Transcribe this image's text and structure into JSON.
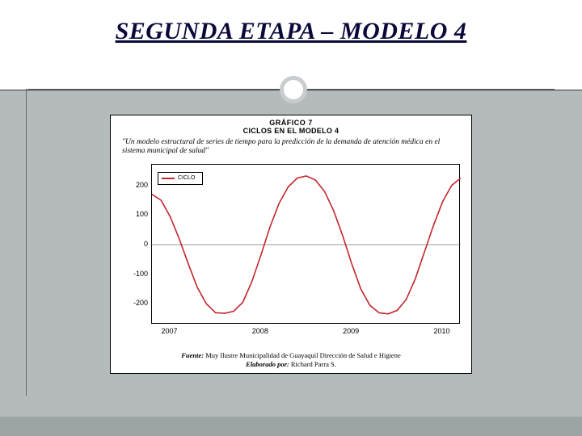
{
  "slide": {
    "title": "SEGUNDA ETAPA – MODELO 4"
  },
  "chart": {
    "type": "line",
    "supertitle": "GRÁFICO 7",
    "title": "CICLOS EN EL MODELO 4",
    "subtitle": "\"Un modelo estructural de series de tiempo para la predicción de la demanda de atención médica en el sistema municipal de salud\"",
    "legend_label": "CICLO",
    "line_color": "#c1272d",
    "line_width": 1.6,
    "background_color": "#ffffff",
    "border_color": "#000000",
    "zero_line_color": "#777777",
    "xlim": [
      2006.8,
      2010.2
    ],
    "ylim": [
      -270,
      270
    ],
    "yticks": [
      -200,
      -100,
      0,
      100,
      200
    ],
    "xticks": [
      2007,
      2008,
      2009,
      2010
    ],
    "title_fontsize": 9,
    "subtitle_fontsize": 9.5,
    "tick_fontsize": 9,
    "legend_fontsize": 7,
    "series": {
      "x": [
        2006.8,
        2006.9,
        2007.0,
        2007.1,
        2007.2,
        2007.3,
        2007.4,
        2007.5,
        2007.6,
        2007.7,
        2007.8,
        2007.9,
        2008.0,
        2008.1,
        2008.2,
        2008.3,
        2008.4,
        2008.5,
        2008.6,
        2008.7,
        2008.8,
        2008.9,
        2009.0,
        2009.1,
        2009.2,
        2009.3,
        2009.4,
        2009.5,
        2009.6,
        2009.7,
        2009.8,
        2009.9,
        2010.0,
        2010.1,
        2010.2
      ],
      "y": [
        170,
        150,
        95,
        20,
        -65,
        -145,
        -200,
        -230,
        -232,
        -225,
        -195,
        -125,
        -35,
        60,
        140,
        195,
        225,
        232,
        218,
        180,
        115,
        30,
        -65,
        -150,
        -205,
        -230,
        -234,
        -222,
        -185,
        -115,
        -25,
        65,
        145,
        200,
        225
      ]
    },
    "source_label": "Fuente:",
    "source_text": " Muy Ilustre Municipalidad de Guayaquil Dirección de Salud e Higiene",
    "author_label": "Elaborado por:",
    "author_text": " Richard Parra S."
  }
}
